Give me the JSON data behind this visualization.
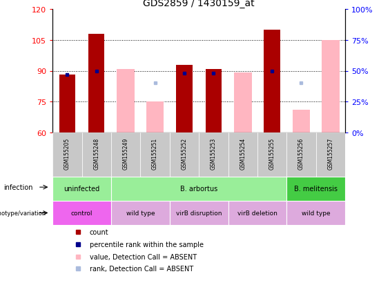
{
  "title": "GDS2859 / 1430159_at",
  "samples": [
    "GSM155205",
    "GSM155248",
    "GSM155249",
    "GSM155251",
    "GSM155252",
    "GSM155253",
    "GSM155254",
    "GSM155255",
    "GSM155256",
    "GSM155257"
  ],
  "count_values": [
    88,
    108,
    null,
    null,
    93,
    91,
    null,
    110,
    null,
    null
  ],
  "percentile_values": [
    47,
    50,
    null,
    null,
    48,
    48,
    null,
    50,
    null,
    null
  ],
  "absent_value_values": [
    null,
    null,
    91,
    75,
    null,
    null,
    89,
    null,
    71,
    105
  ],
  "absent_rank_values": [
    null,
    null,
    null,
    40,
    null,
    null,
    null,
    null,
    40,
    null
  ],
  "ylim_left": [
    60,
    120
  ],
  "ylim_right": [
    0,
    100
  ],
  "left_ticks": [
    60,
    75,
    90,
    105,
    120
  ],
  "right_ticks": [
    0,
    25,
    50,
    75,
    100
  ],
  "right_tick_labels": [
    "0%",
    "25%",
    "50%",
    "75%",
    "100%"
  ],
  "count_color": "#AA0000",
  "percentile_color": "#00008B",
  "absent_value_color": "#FFB6C1",
  "absent_rank_color": "#AABBDD",
  "bar_width": 0.55,
  "infection_data": [
    {
      "label": "uninfected",
      "start": 0,
      "end": 2,
      "bg": "#99EE99"
    },
    {
      "label": "B. arbortus",
      "start": 2,
      "end": 8,
      "bg": "#99EE99"
    },
    {
      "label": "B. melitensis",
      "start": 8,
      "end": 10,
      "bg": "#44CC44"
    }
  ],
  "genotype_data": [
    {
      "label": "control",
      "start": 0,
      "end": 2,
      "bg": "#EE66EE"
    },
    {
      "label": "wild type",
      "start": 2,
      "end": 4,
      "bg": "#DDAADD"
    },
    {
      "label": "virB disruption",
      "start": 4,
      "end": 6,
      "bg": "#DDAADD"
    },
    {
      "label": "virB deletion",
      "start": 6,
      "end": 8,
      "bg": "#DDAADD"
    },
    {
      "label": "wild type",
      "start": 8,
      "end": 10,
      "bg": "#DDAADD"
    }
  ],
  "legend_items": [
    {
      "color": "#AA0000",
      "label": "count"
    },
    {
      "color": "#00008B",
      "label": "percentile rank within the sample"
    },
    {
      "color": "#FFB6C1",
      "label": "value, Detection Call = ABSENT"
    },
    {
      "color": "#AABBDD",
      "label": "rank, Detection Call = ABSENT"
    }
  ]
}
